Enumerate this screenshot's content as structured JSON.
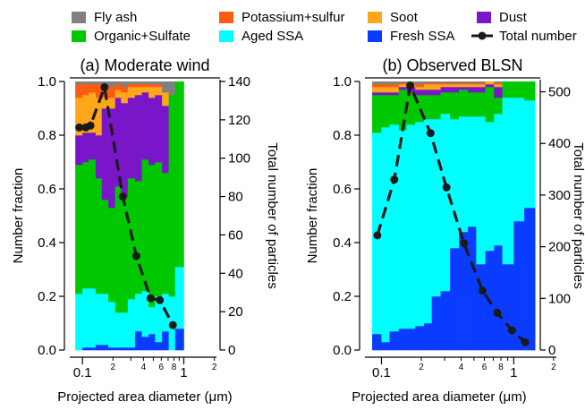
{
  "legend": [
    {
      "key": "fly_ash",
      "label": "Fly ash",
      "color": "#808080",
      "kind": "box"
    },
    {
      "key": "potassium_sulfur",
      "label": "Potassium+sulfur",
      "color": "#ff5b0f",
      "kind": "box"
    },
    {
      "key": "soot",
      "label": "Soot",
      "color": "#ffa719",
      "kind": "box"
    },
    {
      "key": "dust",
      "label": "Dust",
      "color": "#7a16c9",
      "kind": "box"
    },
    {
      "key": "organic_sulfate",
      "label": "Organic+Sulfate",
      "color": "#00c800",
      "kind": "box"
    },
    {
      "key": "aged_ssa",
      "label": "Aged SSA",
      "color": "#00ffff",
      "kind": "box"
    },
    {
      "key": "fresh_ssa",
      "label": "Fresh SSA",
      "color": "#0a3cff",
      "kind": "box"
    },
    {
      "key": "total_number",
      "label": "Total number",
      "color": "#1a1a1a",
      "kind": "line"
    }
  ],
  "chart_data": [
    {
      "type": "bar",
      "subtype": "stacked-fraction-with-line",
      "title": "(a) Moderate wind",
      "xlabel": "Projected area diameter (",
      "xlabel_unit": "μ",
      "xlabel_tail": "m)",
      "ylabel": "Number fraction",
      "y2label": "Total number of particles",
      "xscale": "log",
      "xlim": [
        0.075,
        2.1
      ],
      "ylim": [
        0,
        1
      ],
      "y2lim": [
        0,
        140
      ],
      "xticks_major": [
        "0.1",
        "1"
      ],
      "xticks_minor": [
        "2",
        "4",
        "6",
        "8",
        "2"
      ],
      "yticks": [
        "0.0",
        "0.2",
        "0.4",
        "0.6",
        "0.8",
        "1.0"
      ],
      "y2ticks": [
        "0",
        "20",
        "40",
        "60",
        "80",
        "100",
        "120",
        "140"
      ],
      "bin_edges": [
        0.085,
        0.1,
        0.115,
        0.135,
        0.155,
        0.18,
        0.21,
        0.24,
        0.28,
        0.33,
        0.385,
        0.45,
        0.52,
        0.61,
        0.71,
        0.82,
        1.0
      ],
      "fractions": {
        "fresh_ssa": [
          0.0,
          0.01,
          0.01,
          0.02,
          0.02,
          0.01,
          0.01,
          0.01,
          0.01,
          0.07,
          0.05,
          0.06,
          0.03,
          0.07,
          0.0,
          0.08
        ],
        "aged_ssa": [
          0.21,
          0.22,
          0.22,
          0.19,
          0.19,
          0.17,
          0.13,
          0.13,
          0.18,
          0.14,
          0.17,
          0.1,
          0.17,
          0.14,
          0.2,
          0.23
        ],
        "organic_sulfate": [
          0.48,
          0.47,
          0.48,
          0.43,
          0.35,
          0.35,
          0.47,
          0.43,
          0.45,
          0.42,
          0.49,
          0.53,
          0.5,
          0.45,
          0.75,
          0.69
        ],
        "dust": [
          0.11,
          0.11,
          0.1,
          0.16,
          0.34,
          0.37,
          0.33,
          0.35,
          0.3,
          0.32,
          0.25,
          0.25,
          0.25,
          0.25,
          0.0,
          0.0
        ],
        "soot": [
          0.14,
          0.14,
          0.15,
          0.14,
          0.04,
          0.04,
          0.03,
          0.04,
          0.04,
          0.03,
          0.02,
          0.04,
          0.03,
          0.05,
          0.0,
          0.0
        ],
        "potassium_sulfur": [
          0.05,
          0.04,
          0.03,
          0.05,
          0.04,
          0.04,
          0.02,
          0.02,
          0.01,
          0.01,
          0.01,
          0.01,
          0.01,
          0.0,
          0.0,
          0.0
        ],
        "fly_ash": [
          0.01,
          0.01,
          0.01,
          0.01,
          0.02,
          0.02,
          0.01,
          0.02,
          0.01,
          0.01,
          0.01,
          0.01,
          0.01,
          0.04,
          0.05,
          0.0
        ]
      },
      "total_number": {
        "x": [
          0.093,
          0.108,
          0.12,
          0.165,
          0.25,
          0.34,
          0.47,
          0.58,
          0.78
        ],
        "y": [
          116,
          116,
          117,
          137,
          80,
          49,
          27,
          26,
          13
        ]
      }
    },
    {
      "type": "bar",
      "subtype": "stacked-fraction-with-line",
      "title": "(b) Observed BLSN",
      "xlabel": "Projected area diameter (",
      "xlabel_unit": "μ",
      "xlabel_tail": "m)",
      "ylabel": "Number fraction",
      "y2label": "Total number of particles",
      "xscale": "log",
      "xlim": [
        0.075,
        2.1
      ],
      "ylim": [
        0,
        1
      ],
      "y2lim": [
        0,
        520
      ],
      "xticks_major": [
        "0.1",
        "1"
      ],
      "xticks_minor": [
        "2",
        "4",
        "6",
        "8",
        "2"
      ],
      "yticks": [
        "0.0",
        "0.2",
        "0.4",
        "0.6",
        "0.8",
        "1.0"
      ],
      "y2ticks": [
        "0",
        "100",
        "200",
        "300",
        "400",
        "500"
      ],
      "bin_edges": [
        0.085,
        0.1,
        0.115,
        0.135,
        0.155,
        0.18,
        0.21,
        0.24,
        0.28,
        0.33,
        0.385,
        0.45,
        0.52,
        0.61,
        0.71,
        0.82,
        1.0,
        1.2,
        1.45
      ],
      "fractions": {
        "fresh_ssa": [
          0.06,
          0.03,
          0.07,
          0.08,
          0.08,
          0.09,
          0.1,
          0.2,
          0.22,
          0.38,
          0.44,
          0.46,
          0.32,
          0.37,
          0.39,
          0.32,
          0.48,
          0.53
        ],
        "aged_ssa": [
          0.75,
          0.8,
          0.77,
          0.74,
          0.76,
          0.76,
          0.76,
          0.66,
          0.66,
          0.48,
          0.43,
          0.41,
          0.55,
          0.48,
          0.49,
          0.62,
          0.46,
          0.4
        ],
        "organic_sulfate": [
          0.14,
          0.12,
          0.11,
          0.15,
          0.12,
          0.1,
          0.09,
          0.09,
          0.08,
          0.1,
          0.1,
          0.09,
          0.09,
          0.13,
          0.06,
          0.06,
          0.06,
          0.07
        ],
        "dust": [
          0.01,
          0.01,
          0.01,
          0.01,
          0.02,
          0.02,
          0.02,
          0.02,
          0.02,
          0.02,
          0.01,
          0.02,
          0.02,
          0.01,
          0.04,
          0.0,
          0.0,
          0.0
        ],
        "soot": [
          0.02,
          0.02,
          0.02,
          0.01,
          0.01,
          0.01,
          0.02,
          0.02,
          0.01,
          0.01,
          0.01,
          0.01,
          0.01,
          0.01,
          0.01,
          0.0,
          0.0,
          0.0
        ],
        "potassium_sulfur": [
          0.01,
          0.01,
          0.01,
          0.005,
          0.005,
          0.01,
          0.005,
          0.005,
          0.005,
          0.005,
          0.005,
          0.005,
          0.005,
          0.0,
          0.005,
          0.0,
          0.0,
          0.0
        ],
        "fly_ash": [
          0.01,
          0.01,
          0.01,
          0.005,
          0.005,
          0.01,
          0.005,
          0.005,
          0.005,
          0.005,
          0.005,
          0.005,
          0.005,
          0.0,
          0.005,
          0.0,
          0.0,
          0.0
        ]
      },
      "total_number": {
        "x": [
          0.093,
          0.125,
          0.165,
          0.235,
          0.31,
          0.42,
          0.58,
          0.75,
          0.97,
          1.22
        ],
        "y": [
          222,
          330,
          512,
          420,
          315,
          207,
          115,
          72,
          38,
          15
        ]
      }
    }
  ]
}
